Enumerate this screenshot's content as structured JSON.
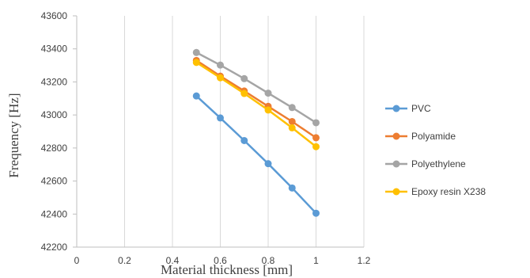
{
  "chart_data": {
    "type": "line",
    "title": "",
    "xlabel": "Material thickness [mm]",
    "ylabel": "Frequency [Hz]",
    "xlim": [
      0,
      1.2
    ],
    "ylim": [
      42200,
      43600
    ],
    "x_ticks": [
      0,
      0.2,
      0.4,
      0.6,
      0.8,
      1,
      1.2
    ],
    "x_tick_labels": [
      "0",
      "0.2",
      "0.4",
      "0.6",
      "0.8",
      "1",
      "1.2"
    ],
    "y_ticks": [
      42200,
      42400,
      42600,
      42800,
      43000,
      43200,
      43400,
      43600
    ],
    "y_tick_labels": [
      "42200",
      "42400",
      "42600",
      "42800",
      "43000",
      "43200",
      "43400",
      "43600"
    ],
    "grid": "vertical",
    "legend": "right",
    "x": [
      0.5,
      0.6,
      0.7,
      0.8,
      0.9,
      1.0
    ],
    "series": [
      {
        "name": "PVC",
        "color": "#5b9bd5",
        "values": [
          43115,
          42982,
          42845,
          42705,
          42558,
          42405
        ]
      },
      {
        "name": "Polyamide",
        "color": "#ed7d31",
        "values": [
          43330,
          43235,
          43145,
          43052,
          42960,
          42862
        ]
      },
      {
        "name": "Polyethylene",
        "color": "#a5a5a5",
        "values": [
          43378,
          43302,
          43220,
          43132,
          43045,
          42953
        ]
      },
      {
        "name": "Epoxy resin X238",
        "color": "#ffc000",
        "values": [
          43318,
          43225,
          43130,
          43030,
          42922,
          42808
        ]
      }
    ]
  }
}
